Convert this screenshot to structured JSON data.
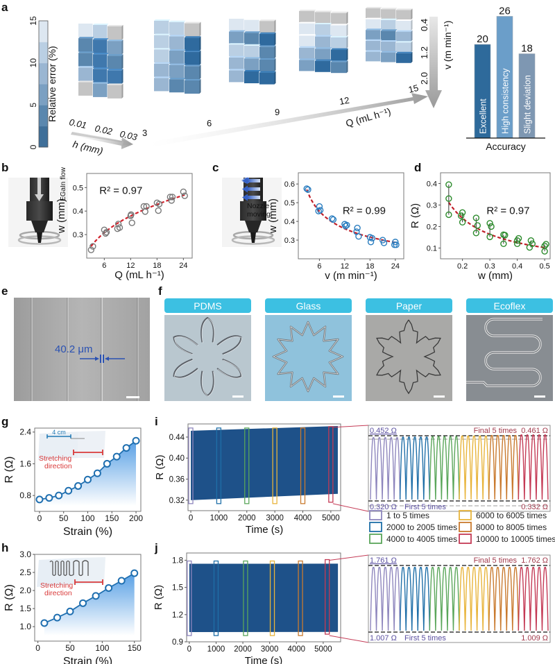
{
  "figure": {
    "panels": [
      "a",
      "b",
      "c",
      "d",
      "e",
      "f",
      "g",
      "h",
      "i",
      "j"
    ]
  },
  "panel_a": {
    "colorbar": {
      "label": "Relative error (%)",
      "ticks": [
        "0",
        "5",
        "10",
        "15"
      ],
      "range": [
        0,
        15
      ],
      "colors": [
        "#3f6f99",
        "#5a87ae",
        "#7ba0c2",
        "#9ab6d2",
        "#bacfe3",
        "#dde7f1"
      ]
    },
    "h_axis": {
      "label": "h (mm)",
      "ticks": [
        "0.01",
        "0.02",
        "0.03"
      ]
    },
    "q_axis": {
      "label": "Q (mL h⁻¹)",
      "ticks": [
        "3",
        "6",
        "9",
        "12",
        "15"
      ]
    },
    "v_axis": {
      "label": "v (m min⁻¹)",
      "ticks": [
        "0.4",
        "1.2",
        "2.0"
      ]
    },
    "gray_color": "#c4c4c4",
    "blocks": [
      {
        "q": "3",
        "rows": [
          [
            "#dde7f1",
            "#bacfe3",
            "gray"
          ],
          [
            "#5a87ae",
            "#3f78ad",
            "#7ba0c2"
          ],
          [
            "#5a87ae",
            "#3f78ad",
            "#5a87ae"
          ],
          [
            "#9ab6d2",
            "#3f78ad",
            "#3f78ad"
          ],
          [
            "gray",
            "#7ba0c2",
            "gray"
          ]
        ]
      },
      {
        "q": "6",
        "rows": [
          [
            "#bacfe3",
            "#bacfe3",
            "gray"
          ],
          [
            "#bacfe3",
            "#9ab6d2",
            "#2f6a9e"
          ],
          [
            "#bacfe3",
            "#7ba0c2",
            "#2f6a9e"
          ],
          [
            "#9ab6d2",
            "#7ba0c2",
            "#5a87ae"
          ],
          [
            "#9ab6d2",
            "#5a87ae",
            "#5a87ae"
          ]
        ]
      },
      {
        "q": "9",
        "rows": [
          [
            "#dde7f1",
            "#dde7f1",
            "gray"
          ],
          [
            "#7ba0c2",
            "#5a87ae",
            "#2f6a9e"
          ],
          [
            "#bacfe3",
            "#bacfe3",
            "#5a87ae"
          ],
          [
            "#9ab6d2",
            "#7ba0c2",
            "#5a87ae"
          ],
          [
            "#9ab6d2",
            "#2f6a9e",
            "#2f6a9e"
          ]
        ]
      },
      {
        "q": "12",
        "rows": [
          [
            "gray",
            "gray",
            "gray"
          ],
          [
            "#dde7f1",
            "#bacfe3",
            "#dde7f1"
          ],
          [
            "#dde7f1",
            "#9ab6d2",
            "#bacfe3"
          ],
          [
            "#9ab6d2",
            "#7ba0c2",
            "#2f6a9e"
          ],
          [
            "#7ba0c2",
            "#2f6a9e",
            "#5a87ae"
          ]
        ]
      },
      {
        "q": "15",
        "rows": [
          [
            "gray",
            "gray",
            "gray"
          ],
          [
            "#dde7f1",
            "#bacfe3",
            "#dde7f1"
          ],
          [
            "#7ba0c2",
            "#5a87ae",
            "#9ab6d2"
          ],
          [
            "#9ab6d2",
            "#9ab6d2",
            "#bacfe3"
          ],
          [
            "#9ab6d2",
            "#7ba0c2",
            "#2f6a9e"
          ]
        ]
      }
    ]
  },
  "chart_data": [
    {
      "id": "a-accuracy",
      "type": "bar",
      "title": "",
      "xlabel": "Accuracy",
      "ylabel": "",
      "categories": [
        "Excellent",
        "High consistency",
        "Slight deviation"
      ],
      "values": [
        20,
        26,
        18
      ],
      "colors": [
        "#2e6a9b",
        "#6b9ec9",
        "#7e97b2"
      ],
      "ylim": [
        0,
        28
      ]
    },
    {
      "id": "b",
      "type": "scatter",
      "xlabel": "Q (mL h⁻¹)",
      "ylabel": "w (mm)",
      "xticks": [
        6,
        12,
        18,
        24
      ],
      "yticks": [
        0.3,
        0.4,
        0.5
      ],
      "xlim": [
        2,
        26
      ],
      "ylim": [
        0.2,
        0.56
      ],
      "annotation": "R² = 0.97",
      "marker_color": "#777777",
      "fit_color": "#d0202a",
      "points": [
        [
          3,
          0.235
        ],
        [
          3.4,
          0.25
        ],
        [
          6,
          0.32
        ],
        [
          6.3,
          0.305
        ],
        [
          6.5,
          0.31
        ],
        [
          9,
          0.325
        ],
        [
          9.2,
          0.345
        ],
        [
          9.5,
          0.33
        ],
        [
          12,
          0.38
        ],
        [
          12.3,
          0.35
        ],
        [
          12.1,
          0.385
        ],
        [
          15,
          0.42
        ],
        [
          15.3,
          0.398
        ],
        [
          15.6,
          0.42
        ],
        [
          18,
          0.435
        ],
        [
          18.3,
          0.402
        ],
        [
          18.5,
          0.43
        ],
        [
          21,
          0.46
        ],
        [
          21.3,
          0.445
        ],
        [
          21.5,
          0.46
        ],
        [
          24,
          0.482
        ],
        [
          24.3,
          0.465
        ]
      ],
      "fit": {
        "form": "power",
        "a": 0.18,
        "b": 0.3
      }
    },
    {
      "id": "c",
      "type": "scatter",
      "xlabel": "v (m min⁻¹)",
      "ylabel": "w (mm)",
      "xticks": [
        6,
        12,
        18,
        24
      ],
      "yticks": [
        0.3,
        0.4,
        0.5,
        0.6
      ],
      "xlim": [
        1,
        26
      ],
      "ylim": [
        0.2,
        0.66
      ],
      "annotation": "R² = 0.99",
      "marker_color": "#2a7dbf",
      "fit_color": "#c0202a",
      "points": [
        [
          3,
          0.575
        ],
        [
          3.3,
          0.57
        ],
        [
          6,
          0.48
        ],
        [
          5.8,
          0.455
        ],
        [
          6.2,
          0.46
        ],
        [
          9,
          0.415
        ],
        [
          9.3,
          0.41
        ],
        [
          12,
          0.385
        ],
        [
          12.2,
          0.375
        ],
        [
          12.5,
          0.38
        ],
        [
          15,
          0.365
        ],
        [
          14.8,
          0.345
        ],
        [
          15.3,
          0.32
        ],
        [
          18,
          0.315
        ],
        [
          18.2,
          0.29
        ],
        [
          18.5,
          0.31
        ],
        [
          21,
          0.3
        ],
        [
          21.3,
          0.285
        ],
        [
          24,
          0.29
        ],
        [
          23.8,
          0.275
        ],
        [
          24.2,
          0.275
        ]
      ],
      "fit": {
        "form": "power",
        "a": 0.82,
        "b": -0.33
      }
    },
    {
      "id": "d",
      "type": "scatter",
      "xlabel": "w (mm)",
      "ylabel": "R (Ω)",
      "xticks": [
        0.2,
        0.3,
        0.4,
        0.5
      ],
      "yticks": [
        0.1,
        0.2,
        0.3,
        0.4
      ],
      "xlim": [
        0.12,
        0.52
      ],
      "ylim": [
        0.05,
        0.45
      ],
      "annotation": "R² = 0.97",
      "marker_color": "#2b8a2b",
      "fit_color": "#c0202a",
      "points": [
        [
          0.15,
          0.395
        ],
        [
          0.15,
          0.33
        ],
        [
          0.15,
          0.255
        ],
        [
          0.2,
          0.265
        ],
        [
          0.2,
          0.22
        ],
        [
          0.195,
          0.25
        ],
        [
          0.25,
          0.24
        ],
        [
          0.255,
          0.205
        ],
        [
          0.25,
          0.17
        ],
        [
          0.3,
          0.215
        ],
        [
          0.305,
          0.2
        ],
        [
          0.3,
          0.152
        ],
        [
          0.35,
          0.162
        ],
        [
          0.355,
          0.16
        ],
        [
          0.35,
          0.12
        ],
        [
          0.4,
          0.135
        ],
        [
          0.405,
          0.145
        ],
        [
          0.4,
          0.12
        ],
        [
          0.45,
          0.135
        ],
        [
          0.455,
          0.12
        ],
        [
          0.445,
          0.103
        ],
        [
          0.5,
          0.11
        ],
        [
          0.505,
          0.118
        ],
        [
          0.5,
          0.085
        ]
      ],
      "fit": {
        "form": "power",
        "a": 0.0535,
        "b": -0.93
      }
    },
    {
      "id": "g",
      "type": "line",
      "xlabel": "Strain (%)",
      "ylabel": "R (Ω)",
      "xticks": [
        0,
        50,
        100,
        150,
        200
      ],
      "yticks": [
        0.8,
        1.6,
        2.4
      ],
      "xlim": [
        -10,
        210
      ],
      "ylim": [
        0.4,
        2.5
      ],
      "x": [
        0,
        20,
        40,
        60,
        80,
        100,
        120,
        140,
        160,
        180,
        200
      ],
      "y": [
        0.7,
        0.74,
        0.8,
        0.92,
        1.04,
        1.2,
        1.36,
        1.6,
        1.78,
        2.0,
        2.18
      ],
      "color": "#1f6fb0"
    },
    {
      "id": "h",
      "type": "line",
      "xlabel": "Strain (%)",
      "ylabel": "R (Ω)",
      "xticks": [
        0,
        50,
        100,
        150
      ],
      "yticks": [
        1.0,
        1.5,
        2.0,
        2.5,
        3.0
      ],
      "xlim": [
        -5,
        160
      ],
      "ylim": [
        0.6,
        3.0
      ],
      "x": [
        10,
        30,
        50,
        70,
        90,
        110,
        130,
        150
      ],
      "y": [
        1.1,
        1.25,
        1.42,
        1.65,
        1.85,
        2.07,
        2.27,
        2.48
      ],
      "color": "#1f6fb0"
    },
    {
      "id": "i",
      "type": "area",
      "xlabel": "Time (s)",
      "ylabel": "R (Ω)",
      "xticks": [
        0,
        1000,
        2000,
        3000,
        4000,
        5000
      ],
      "yticks": [
        0.32,
        0.36,
        0.4,
        0.44
      ],
      "xlim": [
        -100,
        5350
      ],
      "ylim": [
        0.3,
        0.465
      ],
      "band": {
        "x": [
          0,
          5250
        ],
        "upper": [
          0.452,
          0.461
        ],
        "lower": [
          0.32,
          0.332
        ]
      },
      "fill_color": "#1e5189",
      "markers_x": [
        0,
        1000,
        2000,
        3000,
        4000,
        5000
      ],
      "zoom": {
        "max_label": "0.452 Ω",
        "max_label_end": "0.461 Ω",
        "min_label": "0.320 Ω",
        "min_label_end": "0.332 Ω",
        "first_label": "First 5 times",
        "final_label": "Final 5 times"
      }
    },
    {
      "id": "j",
      "type": "area",
      "xlabel": "Time (s)",
      "ylabel": "R (Ω)",
      "xticks": [
        0,
        1000,
        2000,
        3000,
        4000,
        5000
      ],
      "yticks": [
        0.9,
        1.2,
        1.5,
        1.8
      ],
      "xlim": [
        -100,
        5650
      ],
      "ylim": [
        0.9,
        1.88
      ],
      "band": {
        "x": [
          0,
          5550
        ],
        "upper": [
          1.761,
          1.762
        ],
        "lower": [
          1.007,
          1.009
        ]
      },
      "fill_color": "#1e5189",
      "markers_x": [
        0,
        1000,
        2100,
        3100,
        4150,
        5150
      ],
      "zoom": {
        "max_label": "1.761 Ω",
        "max_label_end": "1.762 Ω",
        "min_label": "1.007 Ω",
        "min_label_end": "1.009 Ω",
        "first_label": "First 5 times",
        "final_label": "Final 5 times"
      }
    }
  ],
  "cycle_legend": [
    {
      "label": "1 to 5 times",
      "color": "#8e86bd"
    },
    {
      "label": "2000 to 2005 times",
      "color": "#1f6fa8"
    },
    {
      "label": "4000 to 4005 times",
      "color": "#5aa65a"
    },
    {
      "label": "6000 to 6005 times",
      "color": "#e8b43a"
    },
    {
      "label": "8000 to 8005 times",
      "color": "#c97a2e"
    },
    {
      "label": "10000 to 10005 times",
      "color": "#c43a55"
    }
  ],
  "panel_b_schematic": {
    "label": "EGaIn flow"
  },
  "panel_c_schematic": {
    "label_line1": "Nozzle",
    "label_line2": "moving"
  },
  "panel_e": {
    "measurement": "40.2 μm"
  },
  "panel_f": {
    "substrates": [
      {
        "label": "PDMS",
        "bg": "#b9c7cf"
      },
      {
        "label": "Glass",
        "bg": "#8fc2dc"
      },
      {
        "label": "Paper",
        "bg": "#a9a9a7"
      },
      {
        "label": "Ecoflex",
        "bg": "#888d92"
      }
    ],
    "header_color": "#3cc0e2"
  },
  "panel_g_inset": {
    "scale": "4 cm",
    "stretch_label_1": "Stretching",
    "stretch_label_2": "direction"
  },
  "panel_h_inset": {
    "stretch_label_1": "Stretching",
    "stretch_label_2": "direction"
  }
}
